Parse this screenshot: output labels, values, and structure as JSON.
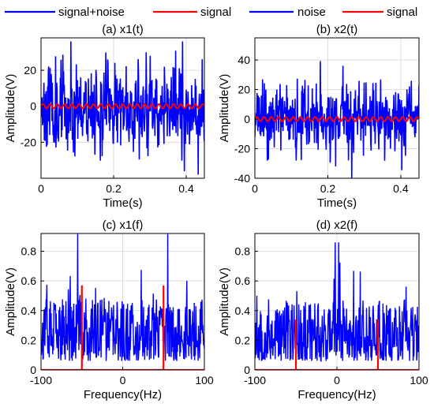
{
  "colors": {
    "noise": "#0000ff",
    "signal": "#ff0000",
    "grid": "#dcdcdc",
    "axis": "#000000"
  },
  "legends": [
    {
      "entries": [
        {
          "label": "signal+noise",
          "color": "#0000ff"
        },
        {
          "label": "signal",
          "color": "#ff0000"
        }
      ]
    },
    {
      "entries": [
        {
          "label": "noise",
          "color": "#0000ff"
        },
        {
          "label": "signal",
          "color": "#ff0000"
        }
      ]
    }
  ],
  "chart_data": [
    {
      "type": "line",
      "title": "(a) x1(t)",
      "xlabel": "Time(s)",
      "ylabel": "Amplitude(V)",
      "xlim": [
        0,
        0.45
      ],
      "ylim": [
        -40,
        38
      ],
      "xticks": [
        0,
        0.2,
        0.4
      ],
      "xtick_labels": [
        "0",
        "0.2",
        "0.4"
      ],
      "yticks": [
        -20,
        0,
        20
      ],
      "ytick_labels": [
        "-20",
        "0",
        "20"
      ],
      "grid": true,
      "series": [
        {
          "name": "signal+noise",
          "color": "#0000ff",
          "kind": "noise",
          "seed": 11,
          "n": 450,
          "scale": 12,
          "clip": [
            -38,
            36
          ]
        },
        {
          "name": "signal",
          "color": "#ff0000",
          "kind": "sine",
          "amplitude": 1.2,
          "frequency_hz": 50
        }
      ]
    },
    {
      "type": "line",
      "title": "(b) x2(t)",
      "xlabel": "Time(s)",
      "ylabel": "Amplitude(V)",
      "xlim": [
        0,
        0.45
      ],
      "ylim": [
        -40,
        55
      ],
      "xticks": [
        0,
        0.2,
        0.4
      ],
      "xtick_labels": [
        "0",
        "0.2",
        "0.4"
      ],
      "yticks": [
        -40,
        -20,
        0,
        20,
        40
      ],
      "ytick_labels": [
        "-40",
        "-20",
        "0",
        "20",
        "40"
      ],
      "grid": true,
      "series": [
        {
          "name": "noise",
          "color": "#0000ff",
          "kind": "noise",
          "seed": 23,
          "n": 450,
          "scale": 11,
          "clip": [
            -40,
            45
          ]
        },
        {
          "name": "signal",
          "color": "#ff0000",
          "kind": "sine",
          "amplitude": 1.5,
          "frequency_hz": 50
        }
      ]
    },
    {
      "type": "line",
      "title": "(c) x1(f)",
      "xlabel": "Frequency(Hz)",
      "ylabel": "Amplitude(V)",
      "xlim": [
        -100,
        100
      ],
      "ylim": [
        0,
        0.92
      ],
      "xticks": [
        -100,
        0,
        100
      ],
      "xtick_labels": [
        "-100",
        "0",
        "100"
      ],
      "yticks": [
        0,
        0.2,
        0.4,
        0.6,
        0.8
      ],
      "ytick_labels": [
        "0",
        "0.2",
        "0.4",
        "0.6",
        "0.8"
      ],
      "grid": true,
      "series": [
        {
          "name": "signal+noise",
          "color": "#0000ff",
          "kind": "spectrum",
          "seed": 37,
          "n": 420,
          "peaks": [
            {
              "x": -55,
              "y": 0.92
            },
            {
              "x": 55,
              "y": 0.92
            }
          ]
        },
        {
          "name": "signal",
          "color": "#ff0000",
          "kind": "impulses",
          "impulses": [
            {
              "x": -50,
              "y": 0.57
            },
            {
              "x": 50,
              "y": 0.57
            }
          ]
        }
      ]
    },
    {
      "type": "line",
      "title": "(d) x2(f)",
      "xlabel": "Frequency(Hz)",
      "ylabel": "Amplitude(V)",
      "xlim": [
        -100,
        100
      ],
      "ylim": [
        0,
        0.92
      ],
      "xticks": [
        -100,
        0,
        100
      ],
      "xtick_labels": [
        "-100",
        "0",
        "100"
      ],
      "yticks": [
        0,
        0.2,
        0.4,
        0.6,
        0.8
      ],
      "ytick_labels": [
        "0",
        "0.2",
        "0.4",
        "0.6",
        "0.8"
      ],
      "grid": true,
      "series": [
        {
          "name": "noise",
          "color": "#0000ff",
          "kind": "spectrum",
          "seed": 53,
          "n": 420,
          "peaks": [
            {
              "x": -2,
              "y": 0.86
            },
            {
              "x": 2,
              "y": 0.86
            }
          ]
        },
        {
          "name": "signal",
          "color": "#ff0000",
          "kind": "impulses",
          "impulses": [
            {
              "x": -50,
              "y": 0.34
            },
            {
              "x": 50,
              "y": 0.34
            }
          ]
        }
      ]
    }
  ]
}
